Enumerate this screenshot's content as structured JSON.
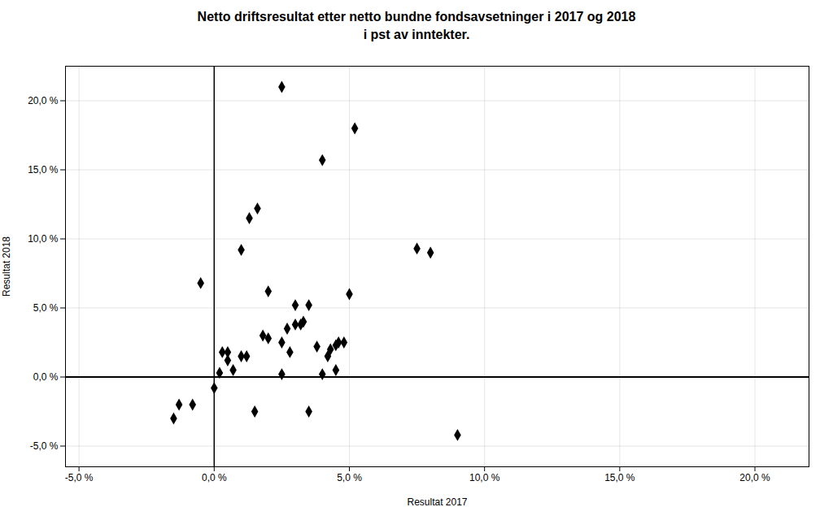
{
  "chart_data": {
    "type": "scatter",
    "title": "Netto driftsresultat etter netto bundne fondsavsetninger i 2017 og 2018\ni pst av inntekter.",
    "xlabel": "Resultat 2017",
    "ylabel": "Resultat 2018",
    "marker": "diamond",
    "grid": true,
    "xlim": [
      -5.5,
      22.0
    ],
    "ylim": [
      -6.5,
      22.5
    ],
    "xticks": [
      {
        "value": -5.0,
        "label": "-5,0 %"
      },
      {
        "value": 0.0,
        "label": "0,0 %"
      },
      {
        "value": 5.0,
        "label": "5,0 %"
      },
      {
        "value": 10.0,
        "label": "10,0 %"
      },
      {
        "value": 15.0,
        "label": "15,0 %"
      },
      {
        "value": 20.0,
        "label": "20,0 %"
      }
    ],
    "yticks": [
      {
        "value": -5.0,
        "label": "-5,0 %"
      },
      {
        "value": 0.0,
        "label": "0,0 %"
      },
      {
        "value": 5.0,
        "label": "5,0 %"
      },
      {
        "value": 10.0,
        "label": "10,0 %"
      },
      {
        "value": 15.0,
        "label": "15,0 %"
      },
      {
        "value": 20.0,
        "label": "20,0 %"
      }
    ],
    "reference_lines": {
      "x": [
        0
      ],
      "y": [
        0
      ]
    },
    "x": [
      2.5,
      4.0,
      1.3,
      1.6,
      -0.5,
      0.5,
      0.7,
      1.0,
      1.2,
      2.0,
      2.5,
      2.7,
      3.0,
      3.2,
      3.3,
      3.5,
      4.0,
      4.2,
      4.3,
      4.5,
      4.6,
      5.0,
      5.2,
      7.5,
      8.0,
      -0.8,
      1.5,
      3.5,
      9.0,
      0.0,
      1.0,
      2.0,
      3.0,
      0.5,
      2.5,
      4.5,
      1.8,
      2.8,
      3.8,
      4.8,
      -1.5,
      -1.3,
      0.2,
      0.3
    ],
    "y": [
      21.0,
      15.7,
      11.5,
      12.2,
      6.8,
      1.8,
      0.5,
      1.5,
      1.5,
      2.8,
      2.5,
      3.5,
      3.8,
      3.8,
      4.0,
      5.2,
      0.2,
      1.5,
      2.0,
      2.3,
      2.5,
      6.0,
      18.0,
      9.3,
      9.0,
      -2.0,
      -2.5,
      -2.5,
      -4.2,
      -0.8,
      9.2,
      6.2,
      5.2,
      1.2,
      0.2,
      0.5,
      3.0,
      1.8,
      2.2,
      2.5,
      -3.0,
      -2.0,
      0.3,
      1.8
    ]
  }
}
